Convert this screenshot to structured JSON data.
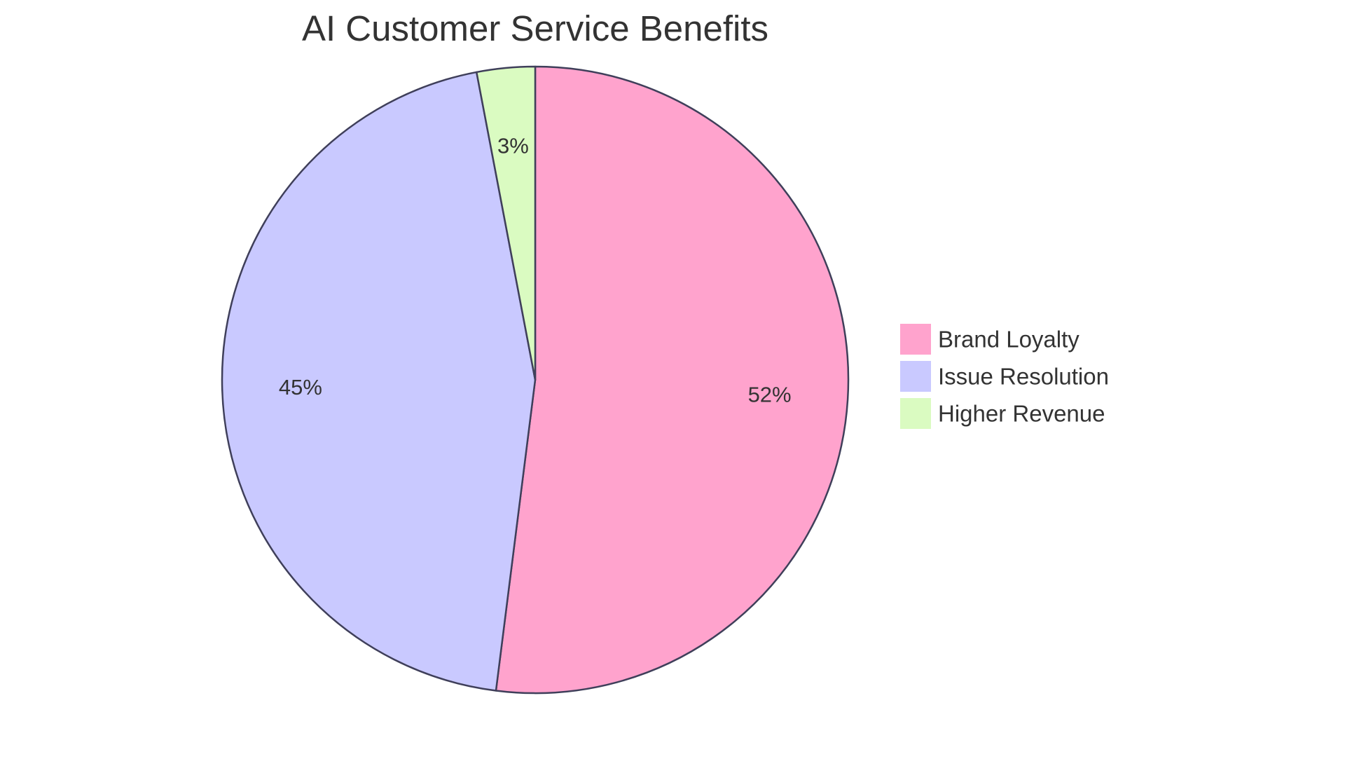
{
  "chart_data": {
    "type": "pie",
    "title": "AI Customer Service Benefits",
    "categories": [
      "Brand Loyalty",
      "Issue Resolution",
      "Higher Revenue"
    ],
    "values": [
      52,
      45,
      3
    ],
    "labels": [
      "52%",
      "45%",
      "3%"
    ],
    "colors": [
      "#ffa3cd",
      "#c9c9ff",
      "#dafbc1"
    ],
    "stroke_color": "#3f3f5a",
    "start_angle": "12 o'clock",
    "direction": "clockwise",
    "legend": "right"
  }
}
